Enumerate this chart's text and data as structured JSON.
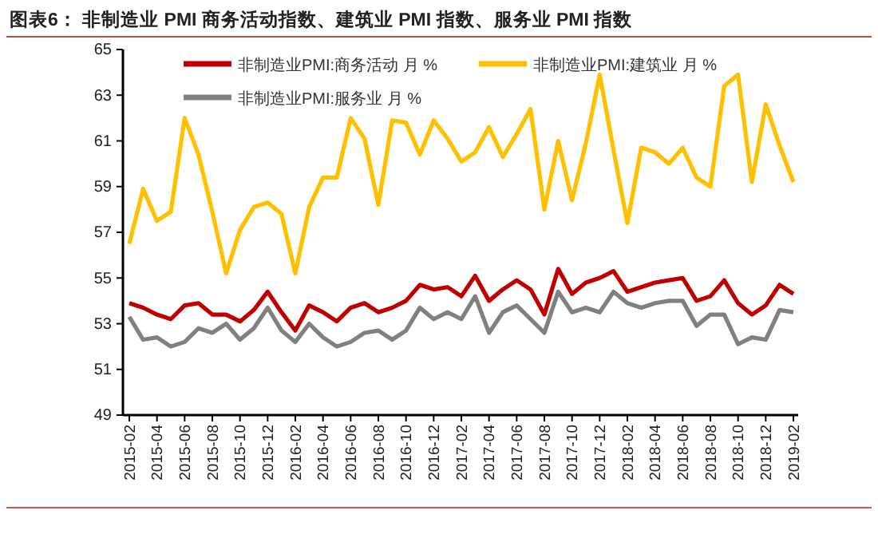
{
  "chart_data": {
    "type": "line",
    "title": "图表6：  非制造业 PMI 商务活动指数、建筑业 PMI 指数、服务业 PMI 指数",
    "categories": [
      "2015-02",
      null,
      "2015-04",
      null,
      "2015-06",
      null,
      "2015-08",
      null,
      "2015-10",
      null,
      "2015-12",
      null,
      "2016-02",
      null,
      "2016-04",
      null,
      "2016-06",
      null,
      "2016-08",
      null,
      "2016-10",
      null,
      "2016-12",
      null,
      "2017-02",
      null,
      "2017-04",
      null,
      "2017-06",
      null,
      "2017-08",
      null,
      "2017-10",
      null,
      "2017-12",
      null,
      "2018-02",
      null,
      "2018-04",
      null,
      "2018-06",
      null,
      "2018-08",
      null,
      "2018-10",
      null,
      "2018-12",
      null,
      "2019-02"
    ],
    "series": [
      {
        "name": "非制造业PMI:商务活动 月 %",
        "color": "#c00000",
        "values": [
          53.9,
          53.7,
          53.4,
          53.2,
          53.8,
          53.9,
          53.4,
          53.4,
          53.1,
          53.6,
          54.4,
          53.5,
          52.7,
          53.8,
          53.5,
          53.1,
          53.7,
          53.9,
          53.5,
          53.7,
          54.0,
          54.7,
          54.5,
          54.6,
          54.2,
          55.1,
          54.0,
          54.5,
          54.9,
          54.5,
          53.4,
          55.4,
          54.3,
          54.8,
          55.0,
          55.3,
          54.4,
          54.6,
          54.8,
          54.9,
          55.0,
          54.0,
          54.2,
          54.9,
          53.9,
          53.4,
          53.8,
          54.7,
          54.3
        ]
      },
      {
        "name": "非制造业PMI:建筑业 月 %",
        "color": "#ffc000",
        "values": [
          56.5,
          58.9,
          57.5,
          57.9,
          62.0,
          60.4,
          57.9,
          55.2,
          57.1,
          58.1,
          58.3,
          57.8,
          55.2,
          58.1,
          59.4,
          59.4,
          62.0,
          61.1,
          58.2,
          61.9,
          61.8,
          60.4,
          61.9,
          61.1,
          60.1,
          60.5,
          61.6,
          60.3,
          61.3,
          62.4,
          58.0,
          61.0,
          58.4,
          60.9,
          63.9,
          60.6,
          57.4,
          60.7,
          60.5,
          60.0,
          60.7,
          59.4,
          59.0,
          63.4,
          63.9,
          59.2,
          62.6,
          60.8,
          59.2
        ]
      },
      {
        "name": "非制造业PMI:服务业 月 %",
        "color": "#808080",
        "values": [
          53.3,
          52.3,
          52.4,
          52.0,
          52.2,
          52.8,
          52.6,
          53.0,
          52.3,
          52.8,
          53.7,
          52.7,
          52.2,
          53.0,
          52.4,
          52.0,
          52.2,
          52.6,
          52.7,
          52.3,
          52.7,
          53.7,
          53.2,
          53.5,
          53.2,
          54.2,
          52.6,
          53.5,
          53.8,
          53.2,
          52.6,
          54.4,
          53.5,
          53.7,
          53.5,
          54.4,
          53.9,
          53.7,
          53.9,
          54.0,
          54.0,
          52.9,
          53.4,
          53.4,
          52.1,
          52.4,
          52.3,
          53.6,
          53.5
        ]
      }
    ],
    "ylim": [
      49,
      65
    ],
    "yticks": [
      49,
      51,
      53,
      55,
      57,
      59,
      61,
      63,
      65
    ],
    "grid": false,
    "legend": "top",
    "marker": "none",
    "line_style": "solid"
  }
}
